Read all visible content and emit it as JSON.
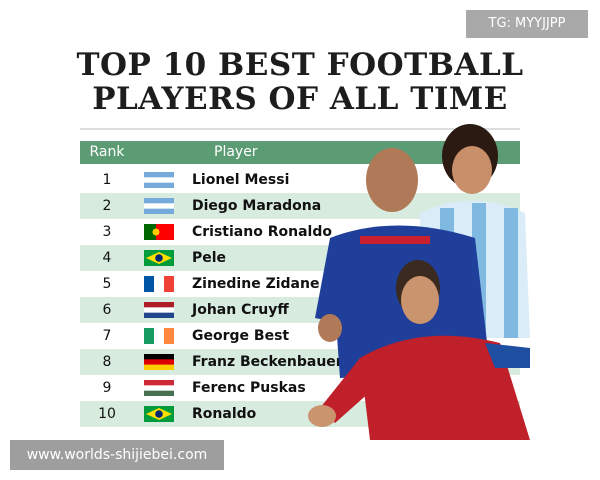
{
  "watermark_top": "TG: MYYJJPP",
  "header": {
    "title_lines": [
      "TOP 10 BEST FOOTBALL",
      "PLAYERS OF ALL TIME"
    ]
  },
  "table": {
    "columns": [
      "Rank",
      "Player"
    ],
    "rows": [
      [
        "1",
        "Lionel Messi"
      ],
      [
        "2",
        "Diego Maradona"
      ],
      [
        "3",
        "Cristiano Ronaldo"
      ],
      [
        "4",
        "Pele"
      ],
      [
        "5",
        "Zinedine Zidane"
      ],
      [
        "6",
        "Johan Cruyff"
      ],
      [
        "7",
        "George Best"
      ],
      [
        "8",
        "Franz Beckenbauer"
      ],
      [
        "9",
        "Ferenc Puskas"
      ],
      [
        "10",
        "Ronaldo"
      ]
    ]
  },
  "watermark_bottom": "www.worlds-shijiebei.com"
}
